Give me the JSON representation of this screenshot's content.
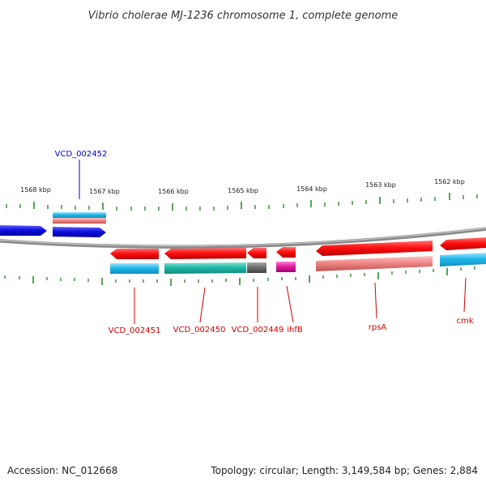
{
  "title": "Vibrio cholerae MJ-1236 chromosome 1, complete genome",
  "accession_text": "Accession: NC_012668",
  "stats_text": "Topology: circular; Length: 3,149,584 bp; Genes: 2,884",
  "ruler": {
    "labels": [
      "1568 kbp",
      "1567 kbp",
      "1566 kbp",
      "1565 kbp",
      "1564 kbp",
      "1563 kbp",
      "1562 kbp"
    ],
    "tick_color": "#2e8b2e"
  },
  "colors": {
    "backbone": "#8a8a8a",
    "forward_gene": "#1010e0",
    "reverse_gene": "#ee1111",
    "cog_cyan": "#20b8e8",
    "cog_teal": "#20b8a8",
    "cog_gray": "#707070",
    "cog_magenta": "#e020a0",
    "cog_salmon": "#f08888",
    "label_forward": "#0000cc",
    "label_reverse": "#cc0000"
  },
  "genes": [
    {
      "id": "g-left-1",
      "label": "",
      "strand": "forward",
      "cog": ""
    },
    {
      "id": "g-vcd002452",
      "label": "VCD_002452",
      "strand": "forward",
      "cog": "cyan+salmon"
    },
    {
      "id": "g-vcd002451",
      "label": "VCD_002451",
      "strand": "reverse",
      "cog": "cyan"
    },
    {
      "id": "g-vcd002450",
      "label": "VCD_002450",
      "strand": "reverse",
      "cog": "teal"
    },
    {
      "id": "g-vcd002449",
      "label": "VCD_002449",
      "strand": "reverse",
      "cog": "gray"
    },
    {
      "id": "g-ihfb",
      "label": "ihfB",
      "strand": "reverse",
      "cog": "magenta"
    },
    {
      "id": "g-rpsa",
      "label": "rpsA",
      "strand": "reverse",
      "cog": "salmon"
    },
    {
      "id": "g-cmk",
      "label": "cmk",
      "strand": "reverse",
      "cog": "cyan"
    }
  ]
}
